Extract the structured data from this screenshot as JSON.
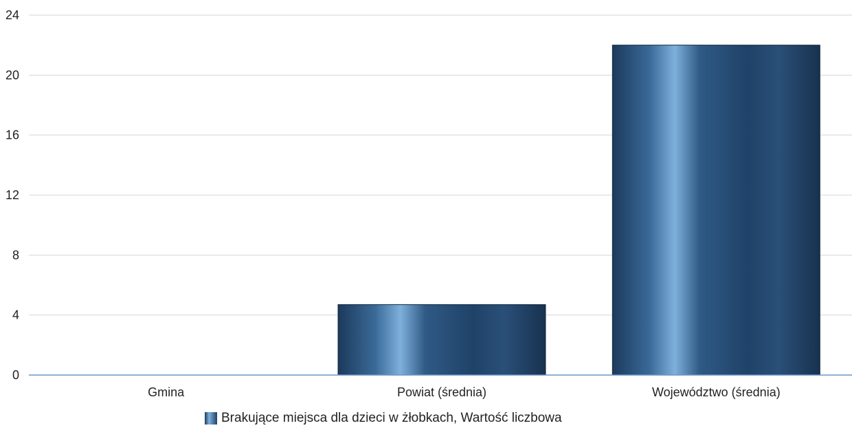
{
  "chart_data": {
    "type": "bar",
    "categories": [
      "Gmina",
      "Powiat (średnia)",
      "Województwo (średnia)"
    ],
    "series": [
      {
        "name": "Brakujące miejsca dla dzieci w żłobkach, Wartość liczbowa",
        "values": [
          0,
          4.7,
          22
        ]
      }
    ],
    "yticks": [
      "0",
      "4",
      "8",
      "12",
      "16",
      "20",
      "24"
    ],
    "ylim": [
      0,
      24
    ],
    "grid": true,
    "legend_position": "bottom",
    "colors": {
      "bar_dark": "#1c3a5c",
      "bar_mid": "#2f5a85",
      "bar_light": "#7fb0dc",
      "axis": "#6c95c4",
      "grid": "#d6d6d6"
    }
  }
}
